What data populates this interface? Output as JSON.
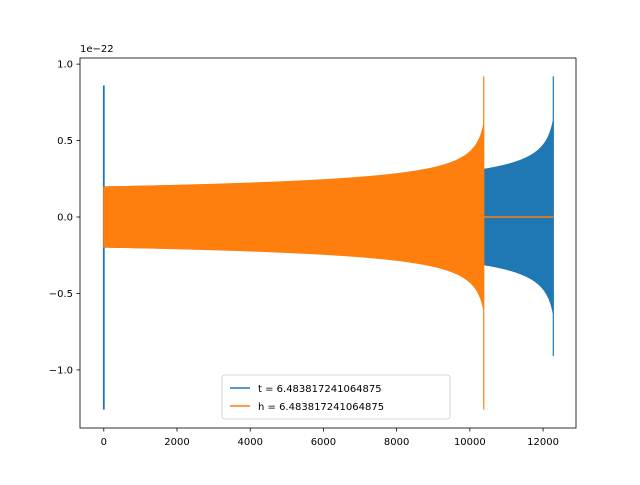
{
  "chart_data": {
    "type": "line",
    "title": "",
    "xlabel": "",
    "ylabel": "",
    "y_offset_label": "1e−22",
    "xlim": [
      -650,
      12900
    ],
    "ylim": [
      -1.38,
      1.04
    ],
    "x_ticks": [
      0,
      2000,
      4000,
      6000,
      8000,
      10000,
      12000
    ],
    "x_tick_labels": [
      "0",
      "2000",
      "4000",
      "6000",
      "8000",
      "10000",
      "12000"
    ],
    "y_ticks": [
      -1.0,
      -0.5,
      0.0,
      0.5,
      1.0
    ],
    "y_tick_labels": [
      "−1.0",
      "−0.5",
      "0.0",
      "0.5",
      "1.0"
    ],
    "legend_position": "lower center",
    "grid": false,
    "series": [
      {
        "name": "t = 6.483817241064875",
        "color": "#1f77b4",
        "start_spike": {
          "x": 0,
          "max": 0.86,
          "min": -1.26
        },
        "oscillation_start": 0,
        "merger_x": 12280,
        "envelope_start": 0.2,
        "envelope_at_end": 0.3,
        "peak_max": 0.92,
        "peak_min": -0.91
      },
      {
        "name": "h = 6.483817241064875",
        "color": "#ff7f0e",
        "oscillation_start": 0,
        "merger_x": 10380,
        "envelope_start": 0.2,
        "peak_max": 0.92,
        "peak_min": -1.26,
        "flat_until": 12280,
        "flat_value": 0.0
      }
    ]
  }
}
